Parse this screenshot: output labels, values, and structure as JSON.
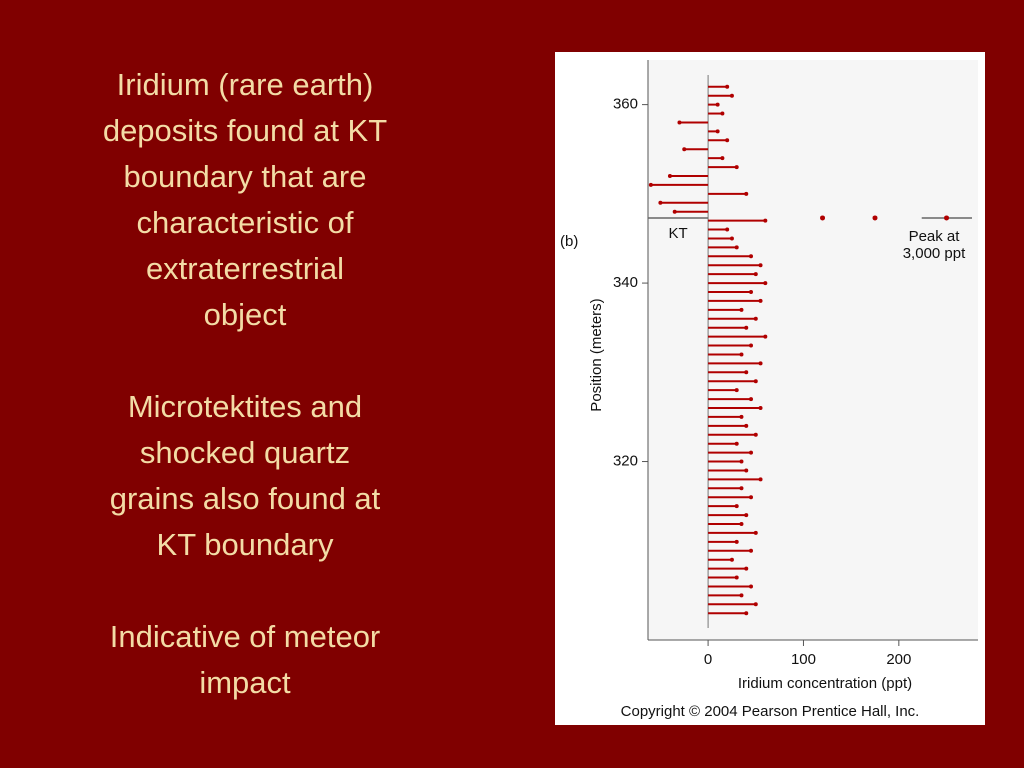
{
  "slide": {
    "paragraphs": [
      [
        "Iridium (rare earth)",
        "deposits found at KT",
        "boundary that are",
        "characteristic of",
        "extraterrestrial",
        "object"
      ],
      [
        "Microtektites and",
        "shocked quartz",
        "grains also found at",
        "KT boundary"
      ],
      [
        "Indicative of meteor",
        "impact"
      ]
    ]
  },
  "chart_data": {
    "type": "stem",
    "panel_label": "(b)",
    "xlabel": "Iridium concentration (ppt)",
    "ylabel": "Position (meters)",
    "copyright": "Copyright © 2004 Pearson Prentice Hall, Inc.",
    "boundary_label": "KT",
    "boundary_position": 347.3,
    "peak_label": [
      "Peak at",
      "3,000 ppt"
    ],
    "peak_points": [
      120,
      175,
      250
    ],
    "color": "#b00000",
    "xlim": [
      -63,
      283
    ],
    "ylim": [
      300,
      365
    ],
    "xticks": [
      0,
      100,
      200
    ],
    "yticks": [
      320,
      340,
      360
    ],
    "y": [
      303,
      304,
      305,
      306,
      307,
      308,
      309,
      310,
      311,
      312,
      313,
      314,
      315,
      316,
      317,
      318,
      319,
      320,
      321,
      322,
      323,
      324,
      325,
      326,
      327,
      328,
      329,
      330,
      331,
      332,
      333,
      334,
      335,
      336,
      337,
      338,
      339,
      340,
      341,
      342,
      343,
      344,
      345,
      346,
      347,
      348,
      349,
      350,
      351,
      352,
      353,
      354,
      355,
      356,
      357,
      358,
      359,
      360,
      361,
      362
    ],
    "x": [
      40,
      50,
      35,
      45,
      30,
      40,
      25,
      45,
      30,
      50,
      35,
      40,
      30,
      45,
      35,
      55,
      40,
      35,
      45,
      30,
      50,
      40,
      35,
      55,
      45,
      30,
      50,
      40,
      55,
      35,
      45,
      60,
      40,
      50,
      35,
      55,
      45,
      60,
      50,
      55,
      45,
      30,
      25,
      20,
      60,
      -35,
      -50,
      40,
      -60,
      -40,
      30,
      15,
      -25,
      20,
      10,
      -30,
      15,
      10,
      25,
      20
    ]
  }
}
